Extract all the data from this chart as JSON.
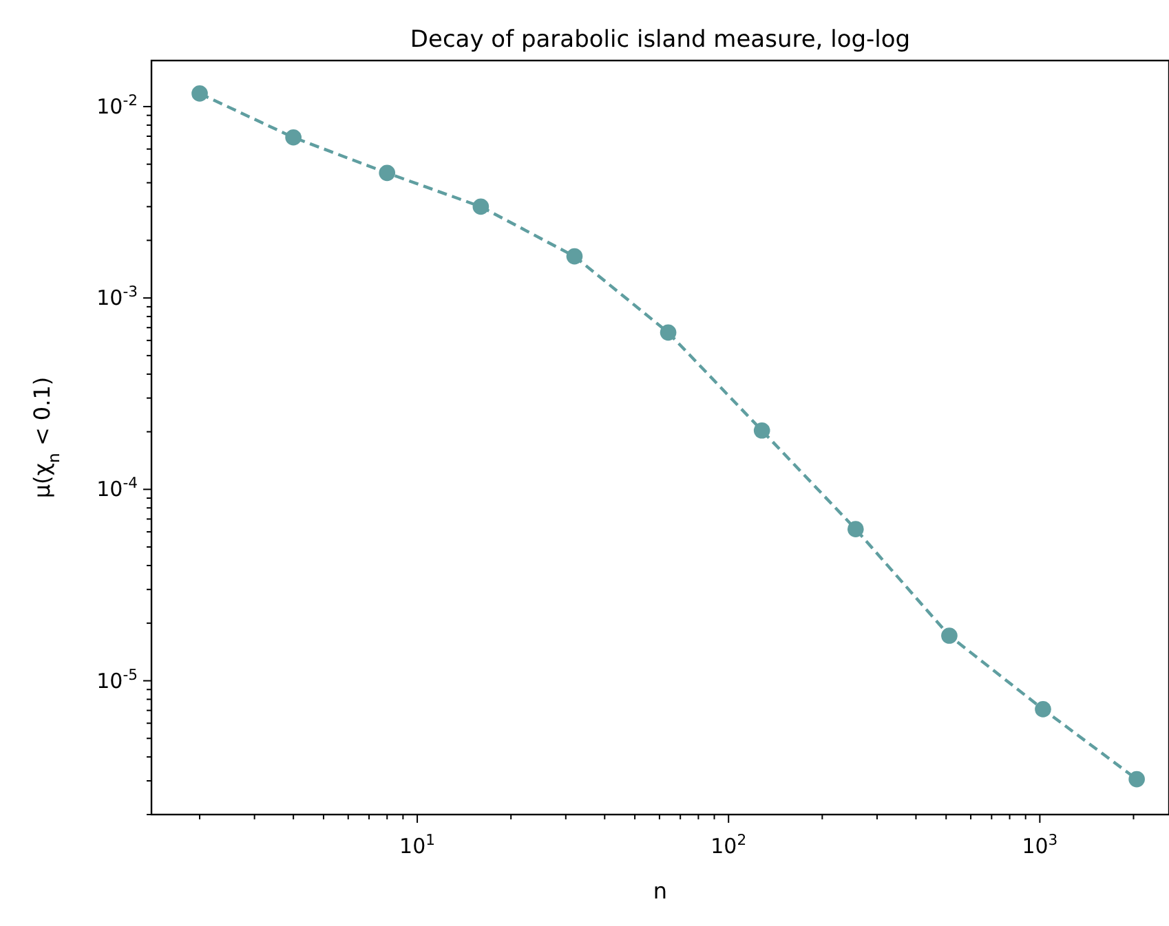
{
  "chart_data": {
    "type": "line",
    "title": "Decay of parabolic island measure, log-log",
    "xlabel": "n",
    "ylabel": "μ(χ$_{n}$ < 0.1)",
    "log": "xy",
    "grid": false,
    "marker": "circle",
    "line_style": "dashed",
    "x": [
      2,
      4,
      8,
      16,
      32,
      64,
      128,
      256,
      512,
      1024,
      2048
    ],
    "series": [
      {
        "color": "#5f9ea0",
        "values": [
          0.0117,
          0.0069,
          0.0045,
          0.003,
          0.00165,
          0.00066,
          0.000203,
          6.2e-05,
          1.72e-05,
          7.1e-06,
          3.06e-06
        ]
      }
    ],
    "xlim": [
      1.4,
      2600
    ],
    "ylim": [
      2e-06,
      0.0174
    ],
    "xticks": [
      {
        "value": 2,
        "label": null
      },
      {
        "value": 3,
        "label": null
      },
      {
        "value": 4,
        "label": null
      },
      {
        "value": 5,
        "label": null
      },
      {
        "value": 6,
        "label": null
      },
      {
        "value": 7,
        "label": null
      },
      {
        "value": 8,
        "label": null
      },
      {
        "value": 9,
        "label": null
      },
      {
        "value": 10,
        "label": "10$^{1}$"
      },
      {
        "value": 20,
        "label": null
      },
      {
        "value": 30,
        "label": null
      },
      {
        "value": 40,
        "label": null
      },
      {
        "value": 50,
        "label": null
      },
      {
        "value": 60,
        "label": null
      },
      {
        "value": 70,
        "label": null
      },
      {
        "value": 80,
        "label": null
      },
      {
        "value": 90,
        "label": null
      },
      {
        "value": 100,
        "label": "10$^{2}$"
      },
      {
        "value": 200,
        "label": null
      },
      {
        "value": 300,
        "label": null
      },
      {
        "value": 400,
        "label": null
      },
      {
        "value": 500,
        "label": null
      },
      {
        "value": 600,
        "label": null
      },
      {
        "value": 700,
        "label": null
      },
      {
        "value": 800,
        "label": null
      },
      {
        "value": 900,
        "label": null
      },
      {
        "value": 1000,
        "label": "10$^{3}$"
      },
      {
        "value": 2000,
        "label": null
      }
    ],
    "yticks": [
      {
        "value": 2e-06,
        "label": null
      },
      {
        "value": 3e-06,
        "label": null
      },
      {
        "value": 4e-06,
        "label": null
      },
      {
        "value": 5e-06,
        "label": null
      },
      {
        "value": 6e-06,
        "label": null
      },
      {
        "value": 7e-06,
        "label": null
      },
      {
        "value": 8e-06,
        "label": null
      },
      {
        "value": 9e-06,
        "label": null
      },
      {
        "value": 1e-05,
        "label": "10$^{-5}$"
      },
      {
        "value": 2e-05,
        "label": null
      },
      {
        "value": 3e-05,
        "label": null
      },
      {
        "value": 4e-05,
        "label": null
      },
      {
        "value": 5e-05,
        "label": null
      },
      {
        "value": 6e-05,
        "label": null
      },
      {
        "value": 7e-05,
        "label": null
      },
      {
        "value": 8e-05,
        "label": null
      },
      {
        "value": 9e-05,
        "label": null
      },
      {
        "value": 0.0001,
        "label": "10$^{-4}$"
      },
      {
        "value": 0.0002,
        "label": null
      },
      {
        "value": 0.0003,
        "label": null
      },
      {
        "value": 0.0004,
        "label": null
      },
      {
        "value": 0.0005,
        "label": null
      },
      {
        "value": 0.0006,
        "label": null
      },
      {
        "value": 0.0007,
        "label": null
      },
      {
        "value": 0.0008,
        "label": null
      },
      {
        "value": 0.0009,
        "label": null
      },
      {
        "value": 0.001,
        "label": "10$^{-3}$"
      },
      {
        "value": 0.002,
        "label": null
      },
      {
        "value": 0.003,
        "label": null
      },
      {
        "value": 0.004,
        "label": null
      },
      {
        "value": 0.005,
        "label": null
      },
      {
        "value": 0.006,
        "label": null
      },
      {
        "value": 0.007,
        "label": null
      },
      {
        "value": 0.008,
        "label": null
      },
      {
        "value": 0.009,
        "label": null
      },
      {
        "value": 0.01,
        "label": "10$^{-2}$"
      }
    ]
  }
}
